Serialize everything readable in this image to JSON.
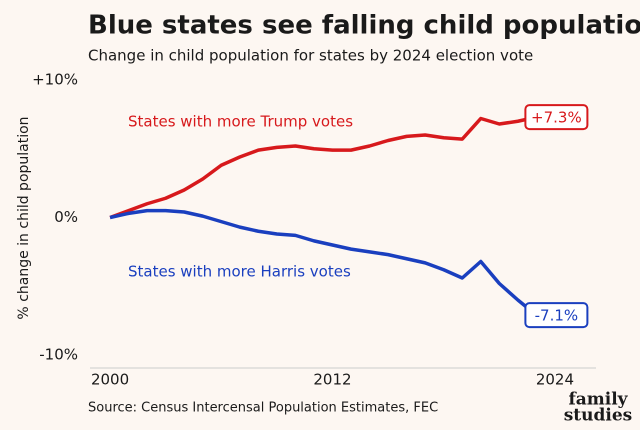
{
  "chart_data": {
    "type": "line",
    "title": "Blue states see falling child population",
    "subtitle": "Change in child population for states by 2024 election vote",
    "y_axis_label": "% change in child population",
    "source": "Source: Census Intercensal Population Estimates, FEC",
    "logo": [
      "family",
      "studies"
    ],
    "x": [
      2000,
      2001,
      2002,
      2003,
      2004,
      2005,
      2006,
      2007,
      2008,
      2009,
      2010,
      2011,
      2012,
      2013,
      2014,
      2015,
      2016,
      2017,
      2018,
      2019,
      2020,
      2021,
      2022,
      2023
    ],
    "xlim": [
      1999,
      2026
    ],
    "xticks": [
      2000,
      2012,
      2024
    ],
    "ylim": [
      -10,
      10
    ],
    "yticks": [
      {
        "value": -10,
        "label": "-10%"
      },
      {
        "value": 0,
        "label": "0%"
      },
      {
        "value": 10,
        "label": "+10%"
      }
    ],
    "series": [
      {
        "name": "States with more Trump votes",
        "color": "#d7191c",
        "values": [
          0,
          0.5,
          1.0,
          1.4,
          2.0,
          2.8,
          3.8,
          4.4,
          4.9,
          5.1,
          5.2,
          5.0,
          4.9,
          4.9,
          5.2,
          5.6,
          5.9,
          6.0,
          5.8,
          5.7,
          7.2,
          6.8,
          7.0,
          7.3
        ],
        "value_labels": [
          null,
          null,
          null,
          null,
          null,
          null,
          null,
          null,
          null,
          null,
          null,
          null,
          null,
          null,
          null,
          null,
          null,
          null,
          null,
          null,
          null,
          null,
          null,
          "+7.3%"
        ]
      },
      {
        "name": "States with more Harris votes",
        "color": "#1a3fbf",
        "values": [
          0,
          0.3,
          0.5,
          0.5,
          0.4,
          0.1,
          -0.3,
          -0.7,
          -1.0,
          -1.2,
          -1.3,
          -1.7,
          -2.0,
          -2.3,
          -2.5,
          -2.7,
          -3.0,
          -3.3,
          -3.8,
          -4.4,
          -3.2,
          -4.8,
          -6.0,
          -7.1
        ],
        "value_labels": [
          null,
          null,
          null,
          null,
          null,
          null,
          null,
          null,
          null,
          null,
          null,
          null,
          null,
          null,
          null,
          null,
          null,
          null,
          null,
          null,
          null,
          null,
          null,
          "-7.1%"
        ]
      }
    ]
  }
}
